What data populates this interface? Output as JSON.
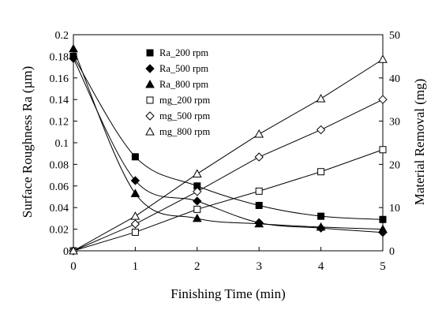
{
  "chart_data": {
    "type": "scatter",
    "xlabel": "Finishing Time (min)",
    "ylabel_left": "Surface Roughness Ra (µm)",
    "ylabel_right": "Material Removal (mg)",
    "xlim": [
      0,
      5
    ],
    "ylim_left": [
      0,
      0.2
    ],
    "ylim_right": [
      0,
      50
    ],
    "x_ticks": [
      "0",
      "1",
      "2",
      "3",
      "4",
      "5"
    ],
    "y_left_ticks": [
      "0",
      "0.02",
      "0.04",
      "0.06",
      "0.08",
      "0.1",
      "0.12",
      "0.14",
      "0.16",
      "0.18",
      "0.2"
    ],
    "y_right_ticks": [
      "0",
      "10",
      "20",
      "30",
      "40",
      "50"
    ],
    "grid": false,
    "legend_position": "top-left inside plot",
    "series": [
      {
        "name": "Ra_200 rpm",
        "axis": "left",
        "marker": "square-filled",
        "x": [
          0,
          1,
          2,
          3,
          4,
          5
        ],
        "y": [
          0.18,
          0.087,
          0.06,
          0.042,
          0.032,
          0.029
        ]
      },
      {
        "name": "Ra_500 rpm",
        "axis": "left",
        "marker": "diamond-filled",
        "x": [
          0,
          1,
          2,
          3,
          4,
          5
        ],
        "y": [
          0.178,
          0.065,
          0.046,
          0.026,
          0.021,
          0.017
        ]
      },
      {
        "name": "Ra_800 rpm",
        "axis": "left",
        "marker": "triangle-filled",
        "x": [
          0,
          1,
          2,
          3,
          4,
          5
        ],
        "y": [
          0.187,
          0.053,
          0.03,
          0.025,
          0.022,
          0.02
        ]
      },
      {
        "name": "mg_200 rpm",
        "axis": "right",
        "marker": "square-open",
        "x": [
          0,
          1,
          2,
          3,
          4,
          5
        ],
        "y": [
          0,
          4.3,
          9.6,
          13.8,
          18.3,
          23.4
        ]
      },
      {
        "name": "mg_500 rpm",
        "axis": "right",
        "marker": "diamond-open",
        "x": [
          0,
          1,
          2,
          3,
          4,
          5
        ],
        "y": [
          0,
          6.2,
          13.7,
          21.7,
          28,
          35
        ]
      },
      {
        "name": "mg_800 rpm",
        "axis": "right",
        "marker": "triangle-open",
        "x": [
          0,
          1,
          2,
          3,
          4,
          5
        ],
        "y": [
          0,
          8,
          17.8,
          27,
          35.2,
          44.3
        ]
      }
    ]
  }
}
